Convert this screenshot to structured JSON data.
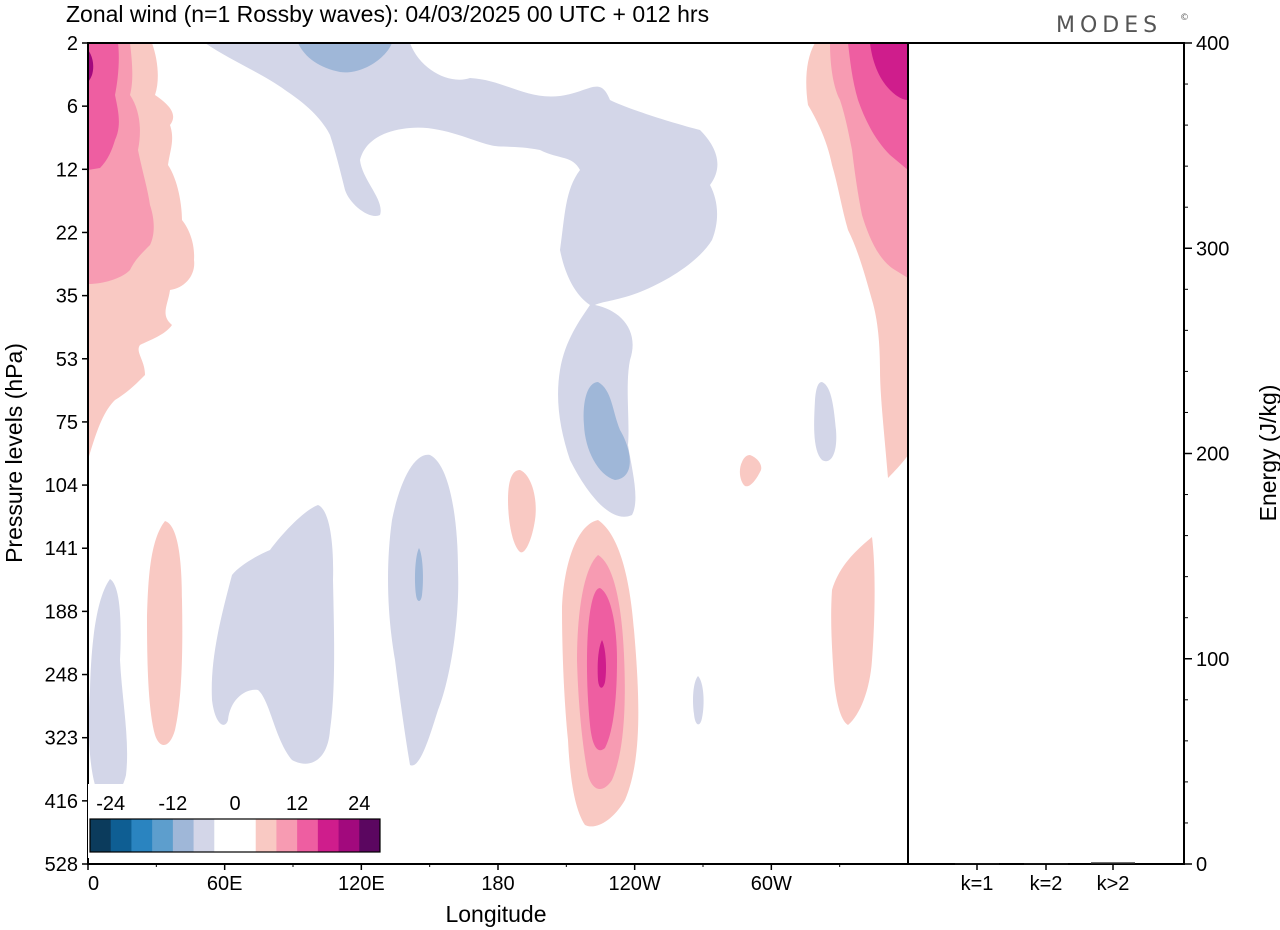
{
  "chart_data": {
    "type": "heatmap",
    "title": "Zonal wind (n=1 Rossby waves):  04/03/2025  00 UTC  + 012 hrs",
    "brand": "MODES",
    "brand_mark": "©",
    "xlabel": "Longitude",
    "ylabel": "Pressure levels (hPa)",
    "y2label": "Energy (J/kg)",
    "x_ticks": [
      "0",
      "60E",
      "120E",
      "180",
      "120W",
      "60W"
    ],
    "y_ticks": [
      "2",
      "6",
      "12",
      "22",
      "35",
      "53",
      "75",
      "104",
      "141",
      "188",
      "248",
      "323",
      "416",
      "528"
    ],
    "y2_ticks": [
      "0",
      "100",
      "200",
      "300",
      "400"
    ],
    "y2_range": [
      0,
      400
    ],
    "energy_categories": [
      "k=1",
      "k=2",
      "k>2"
    ],
    "energy_values": [
      0.3,
      0.3,
      0.8
    ],
    "colorbar_labels": [
      "-24",
      "-12",
      "0",
      "12",
      "24"
    ],
    "colorbar_colors": [
      "#0b3b5c",
      "#0e5e93",
      "#2a84c0",
      "#5d9ecd",
      "#9fb7d8",
      "#d3d6e8",
      "#ffffff",
      "#ffffff",
      "#f9c9c3",
      "#f79bb2",
      "#ee5ea1",
      "#cf1d8c",
      "#a2097d",
      "#5b0660"
    ],
    "legend_position": "bottom-left",
    "colors": {
      "neg_light": "#d3d6e8",
      "neg_mid": "#9fb7d8",
      "pos_light": "#f9c9c3",
      "pos_mid": "#f79bb2",
      "pos_strong": "#ee5ea1",
      "pos_deep": "#cf1d8c",
      "pos_darkest": "#a2097d"
    }
  }
}
